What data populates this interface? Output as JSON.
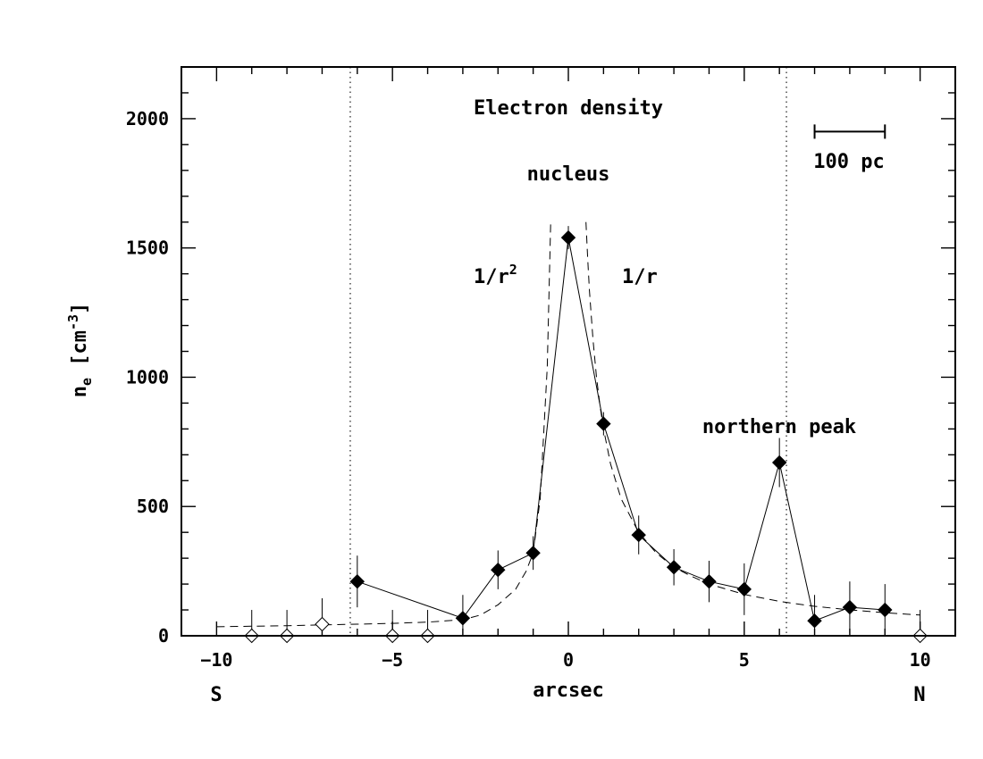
{
  "chart_data": {
    "type": "scatter",
    "title": "Electron density",
    "xlabel": "arcsec",
    "ylabel": "n_e [cm^-3]",
    "ylabel_main": "n",
    "ylabel_sub": "e",
    "ylabel_unit_open": " [cm",
    "ylabel_unit_sup": "-3",
    "ylabel_unit_close": "]",
    "xlim": [
      -11,
      11
    ],
    "ylim": [
      0,
      2200
    ],
    "x_ticks": [
      -10,
      -5,
      0,
      5,
      10
    ],
    "x_tick_labels": [
      "−10",
      "−5",
      "0",
      "5",
      "10"
    ],
    "y_ticks": [
      0,
      500,
      1000,
      1500,
      2000
    ],
    "y_tick_labels": [
      "0",
      "500",
      "1000",
      "1500",
      "2000"
    ],
    "x_minor_step": 1,
    "y_minor_step": 100,
    "grid": false,
    "end_labels": {
      "left": "S",
      "right": "N"
    },
    "vertical_dotted_lines_x": [
      -6.2,
      6.2
    ],
    "annotations": {
      "nucleus": "nucleus",
      "northern_peak": "northern peak",
      "inv_r2_main": "1/r",
      "inv_r2_sup": "2",
      "inv_r": "1/r"
    },
    "scale_bar": {
      "label": "100 pc",
      "x_start": 7,
      "x_end": 9,
      "y": 1950
    },
    "series": [
      {
        "marker": "filled-diamond",
        "connect": true,
        "x": [
          -6,
          -3,
          -2,
          -1,
          0,
          1,
          2,
          3,
          4,
          5,
          6,
          7,
          8,
          9
        ],
        "y": [
          210,
          68,
          255,
          320,
          1540,
          820,
          390,
          265,
          210,
          180,
          670,
          58,
          110,
          100
        ],
        "err": [
          100,
          90,
          75,
          65,
          45,
          45,
          75,
          70,
          80,
          100,
          95,
          100,
          100,
          100
        ]
      },
      {
        "marker": "open-diamond",
        "connect": false,
        "x": [
          -9,
          -8,
          -7,
          -5,
          -4,
          10
        ],
        "y": [
          0,
          0,
          45,
          0,
          0,
          0
        ],
        "err": [
          100,
          100,
          100,
          100,
          100,
          100
        ]
      }
    ],
    "model_curve": {
      "style": "dashed",
      "left_power": 2,
      "right_power": 1,
      "x_left": [
        -10,
        -9,
        -8,
        -7,
        -6,
        -5,
        -4,
        -3,
        -2.5,
        -2,
        -1.5,
        -1.2,
        -1,
        -0.8,
        -0.6,
        -0.5
      ],
      "y_left": [
        35,
        37,
        39,
        42,
        45,
        48,
        53,
        62,
        80,
        120,
        180,
        250,
        320,
        530,
        1040,
        1610
      ],
      "x_right": [
        0.5,
        0.55,
        0.6,
        0.7,
        0.8,
        0.9,
        1,
        1.2,
        1.5,
        2,
        2.5,
        3,
        3.5,
        4,
        5,
        6,
        7,
        8,
        9,
        10
      ],
      "y_right": [
        1600,
        1455,
        1335,
        1145,
        1000,
        890,
        800,
        665,
        530,
        400,
        320,
        265,
        230,
        200,
        160,
        133,
        114,
        100,
        89,
        80
      ]
    }
  }
}
